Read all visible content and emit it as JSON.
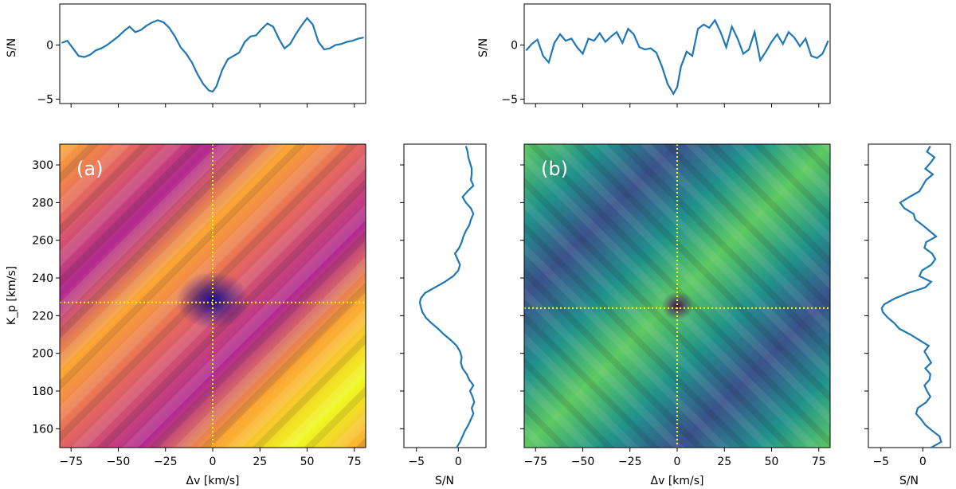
{
  "colors": {
    "line": "#1f77b4",
    "marker": "#ffff00",
    "plasma": [
      "#0d0887",
      "#6a00a8",
      "#b12a90",
      "#e16462",
      "#fca636",
      "#f0f921"
    ],
    "viridis": [
      "#440154",
      "#3b528b",
      "#21918c",
      "#5ec962",
      "#fde725"
    ]
  },
  "chart_data": [
    {
      "id": "a",
      "type": "heatmap",
      "panel_label": "(a)",
      "colormap": "plasma",
      "xlabel": "Δv [km/s]",
      "ylabel": "K_p [km/s]",
      "xlim": [
        -81,
        81
      ],
      "ylim": [
        150,
        311
      ],
      "xticks": [
        -75,
        -50,
        -25,
        0,
        25,
        50,
        75
      ],
      "xtick_labels": [
        "−75",
        "−50",
        "−25",
        "0",
        "25",
        "50",
        "75"
      ],
      "yticks": [
        160,
        180,
        200,
        220,
        240,
        260,
        280,
        300
      ],
      "ytick_labels": [
        "160",
        "180",
        "200",
        "220",
        "240",
        "260",
        "280",
        "300"
      ],
      "peak": {
        "dv": 0,
        "kp": 227
      },
      "top_profile": {
        "ylabel": "S/N",
        "ylim": [
          -5.4,
          3.8
        ],
        "yticks": [
          -5,
          0
        ],
        "ytick_labels": [
          "−5",
          "0"
        ],
        "x": [
          -80,
          -77,
          -74,
          -71,
          -68,
          -65,
          -62,
          -59,
          -56,
          -53,
          -50,
          -47,
          -44,
          -41,
          -38,
          -35,
          -32,
          -29,
          -26,
          -23,
          -20,
          -17,
          -14,
          -11,
          -8,
          -5,
          -2,
          0,
          2,
          5,
          8,
          11,
          14,
          17,
          20,
          23,
          26,
          29,
          32,
          35,
          38,
          41,
          44,
          47,
          50,
          53,
          56,
          59,
          62,
          65,
          68,
          71,
          74,
          77,
          80
        ],
        "y": [
          0.2,
          0.4,
          -0.3,
          -1.0,
          -1.1,
          -0.9,
          -0.5,
          -0.3,
          0.0,
          0.4,
          0.8,
          1.3,
          1.7,
          1.2,
          1.4,
          1.8,
          2.1,
          2.3,
          2.1,
          1.6,
          0.8,
          -0.2,
          -0.8,
          -1.6,
          -2.7,
          -3.6,
          -4.2,
          -4.3,
          -3.8,
          -2.3,
          -1.3,
          -1.0,
          -0.7,
          0.3,
          0.8,
          0.9,
          1.5,
          2.0,
          1.7,
          0.6,
          -0.3,
          0.1,
          1.0,
          1.8,
          2.5,
          1.9,
          0.3,
          -0.4,
          -0.3,
          0.0,
          0.1,
          0.3,
          0.4,
          0.6,
          0.7
        ]
      },
      "side_profile": {
        "xlabel": "S/N",
        "xlim": [
          -6.5,
          3.3
        ],
        "xticks": [
          -5,
          0
        ],
        "xtick_labels": [
          "−5",
          "0"
        ],
        "kp": [
          150,
          153,
          156,
          159,
          162,
          165,
          168,
          171,
          174,
          177,
          180,
          183,
          186,
          189,
          192,
          195,
          198,
          201,
          204,
          207,
          210,
          213,
          216,
          219,
          222,
          225,
          227,
          229,
          232,
          235,
          238,
          241,
          244,
          247,
          250,
          253,
          256,
          259,
          262,
          265,
          268,
          271,
          274,
          277,
          280,
          283,
          286,
          289,
          292,
          295,
          298,
          301,
          304,
          307,
          310
        ],
        "sn": [
          -0.2,
          0.2,
          0.5,
          0.8,
          1.2,
          1.5,
          1.8,
          1.6,
          1.9,
          1.7,
          1.4,
          1.8,
          1.3,
          1.0,
          0.5,
          0.3,
          0.4,
          0.2,
          -0.2,
          -0.9,
          -1.7,
          -2.4,
          -3.2,
          -3.9,
          -4.3,
          -4.5,
          -4.6,
          -4.5,
          -4.0,
          -2.8,
          -1.6,
          -0.6,
          0.0,
          0.2,
          -0.1,
          -0.4,
          0.1,
          0.4,
          0.6,
          0.9,
          1.3,
          1.5,
          1.8,
          1.5,
          0.9,
          0.5,
          1.1,
          1.8,
          1.5,
          1.6,
          1.6,
          1.4,
          1.2,
          1.1,
          0.9
        ]
      }
    },
    {
      "id": "b",
      "type": "heatmap",
      "panel_label": "(b)",
      "colormap": "viridis",
      "xlabel": "Δv [km/s]",
      "ylabel": "",
      "xlim": [
        -81,
        81
      ],
      "ylim": [
        150,
        311
      ],
      "xticks": [
        -75,
        -50,
        -25,
        0,
        25,
        50,
        75
      ],
      "xtick_labels": [
        "−75",
        "−50",
        "−25",
        "0",
        "25",
        "50",
        "75"
      ],
      "yticks": [
        160,
        180,
        200,
        220,
        240,
        260,
        280,
        300
      ],
      "ytick_labels": [
        "",
        "",
        "",
        "",
        "",
        "",
        "",
        ""
      ],
      "peak": {
        "dv": 0,
        "kp": 224
      },
      "top_profile": {
        "ylabel": "S/N",
        "ylim": [
          -5.4,
          3.8
        ],
        "yticks": [
          -5,
          0
        ],
        "ytick_labels": [
          "−5",
          "0"
        ],
        "x": [
          -80,
          -77,
          -74,
          -71,
          -68,
          -65,
          -62,
          -59,
          -56,
          -53,
          -50,
          -47,
          -44,
          -41,
          -38,
          -35,
          -32,
          -29,
          -26,
          -23,
          -20,
          -17,
          -14,
          -11,
          -8,
          -5,
          -2,
          0,
          2,
          5,
          8,
          11,
          14,
          17,
          20,
          23,
          26,
          29,
          32,
          35,
          38,
          41,
          44,
          47,
          50,
          53,
          56,
          59,
          62,
          65,
          68,
          71,
          74,
          77,
          80
        ],
        "y": [
          -0.5,
          0.1,
          0.5,
          -1.0,
          -1.6,
          0.2,
          1.0,
          0.4,
          0.6,
          -0.2,
          -0.8,
          0.6,
          0.4,
          1.1,
          0.3,
          0.8,
          1.2,
          0.2,
          1.5,
          1.0,
          -0.2,
          -0.4,
          -0.3,
          -0.7,
          -2.0,
          -3.6,
          -4.5,
          -3.9,
          -2.0,
          -0.6,
          -1.0,
          1.5,
          1.9,
          1.6,
          2.3,
          1.2,
          -0.2,
          1.7,
          0.6,
          -0.8,
          -0.4,
          1.2,
          -1.4,
          -0.6,
          0.3,
          1.0,
          0.1,
          1.2,
          0.7,
          -0.1,
          0.6,
          -1.0,
          -1.2,
          -0.8,
          0.4
        ]
      },
      "side_profile": {
        "xlabel": "S/N",
        "xlim": [
          -6.5,
          3.3
        ],
        "xticks": [
          -5,
          0
        ],
        "xtick_labels": [
          "−5",
          "0"
        ],
        "kp": [
          150,
          153,
          156,
          159,
          162,
          165,
          168,
          171,
          174,
          177,
          180,
          183,
          186,
          189,
          192,
          195,
          198,
          201,
          204,
          207,
          210,
          213,
          216,
          219,
          222,
          224,
          226,
          229,
          232,
          235,
          238,
          241,
          244,
          247,
          250,
          253,
          256,
          259,
          262,
          265,
          268,
          271,
          274,
          277,
          280,
          283,
          286,
          289,
          292,
          295,
          298,
          301,
          304,
          307,
          310
        ],
        "sn": [
          1.0,
          2.2,
          2.0,
          1.1,
          0.3,
          -0.2,
          -0.8,
          -0.6,
          0.4,
          0.9,
          0.5,
          0.2,
          0.8,
          0.9,
          0.3,
          1.0,
          0.6,
          0.2,
          0.7,
          -0.4,
          -1.5,
          -2.8,
          -3.4,
          -4.2,
          -4.8,
          -4.9,
          -4.6,
          -3.4,
          -1.8,
          0.3,
          1.0,
          -0.4,
          -0.1,
          1.0,
          1.5,
          1.1,
          0.2,
          0.4,
          1.6,
          0.8,
          0.0,
          -0.9,
          -1.1,
          -2.2,
          -2.7,
          -1.6,
          -0.4,
          0.0,
          0.4,
          1.2,
          0.3,
          0.9,
          1.4,
          0.5,
          0.9
        ]
      }
    }
  ]
}
